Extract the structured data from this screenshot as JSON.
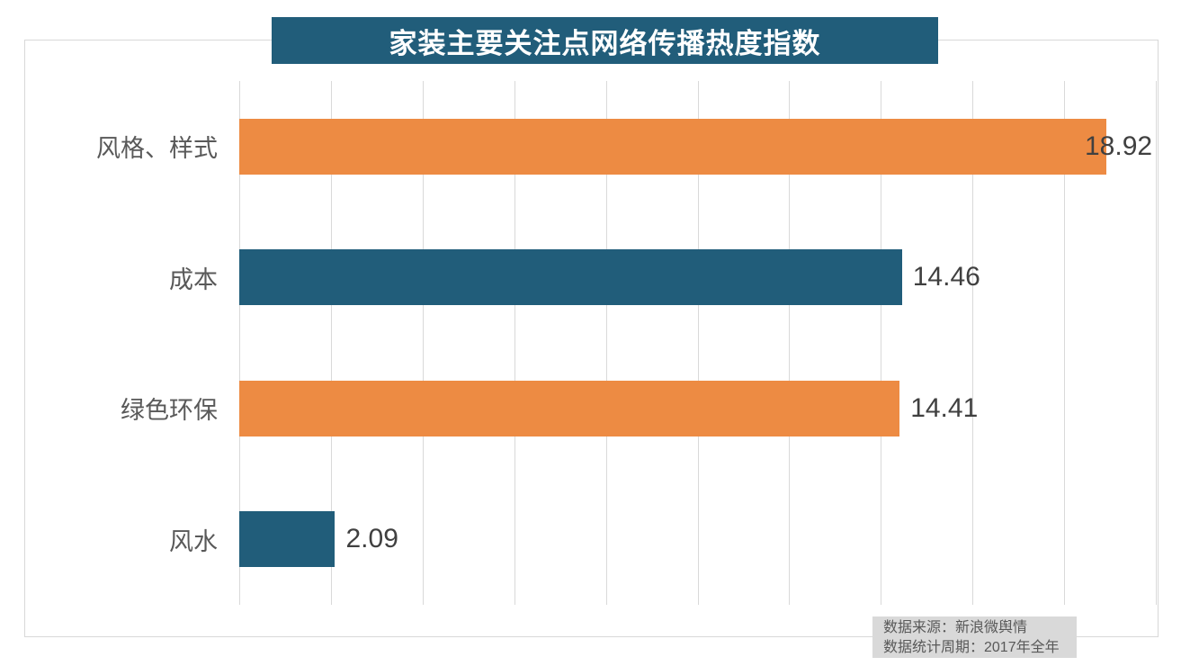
{
  "title": "家装主要关注点网络传播热度指数",
  "source": {
    "line1": "数据来源：新浪微舆情",
    "line2": "数据统计周期：2017年全年"
  },
  "colors": {
    "title_background": "#215d7a",
    "title_text": "#ffffff",
    "bar_orange": "#ed8b43",
    "bar_teal": "#215d7a",
    "gridline": "#d9d9d9",
    "panel_border": "#d8d8d8",
    "category_text": "#595959",
    "value_text": "#404040",
    "source_background": "#d9d9d9",
    "source_text": "#595959"
  },
  "chart_data": {
    "type": "bar",
    "orientation": "horizontal",
    "title": "家装主要关注点网络传播热度指数",
    "categories": [
      "风格、样式",
      "成本",
      "绿色环保",
      "风水"
    ],
    "values": [
      18.92,
      14.46,
      14.41,
      2.09
    ],
    "data_labels": [
      "18.92",
      "14.46",
      "14.41",
      "2.09"
    ],
    "bar_colors": [
      "#ed8b43",
      "#215d7a",
      "#ed8b43",
      "#215d7a"
    ],
    "xlim": [
      0,
      20
    ],
    "gridline_interval": 2,
    "grid": true,
    "axis_tick_labels_visible": false,
    "legend": "none",
    "annotations": [
      "数据来源：新浪微舆情",
      "数据统计周期：2017年全年"
    ]
  }
}
